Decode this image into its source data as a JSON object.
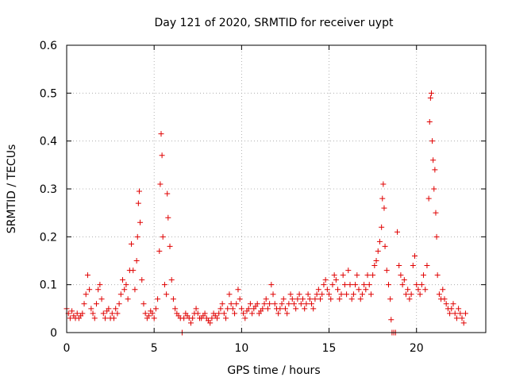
{
  "chart_data": {
    "type": "scatter",
    "title": "Day 121 of 2020, SRMTID for receiver uypt",
    "xlabel": "GPS time / hours",
    "ylabel": "SRMTID / TECUs",
    "xlim": [
      0,
      23.96
    ],
    "ylim": [
      0,
      0.6
    ],
    "xticks": [
      0,
      5,
      10,
      15,
      20
    ],
    "xtick_labels": [
      "0",
      "5",
      "10",
      "15",
      "20"
    ],
    "yticks": [
      0,
      0.1,
      0.2,
      0.3,
      0.4,
      0.5,
      0.6
    ],
    "ytick_labels": [
      "0",
      "0.1",
      "0.2",
      "0.3",
      "0.4",
      "0.5",
      "0.6"
    ],
    "grid": true,
    "marker": "plus",
    "marker_color": "#e00000",
    "series": [
      {
        "name": "SRMTID",
        "points": [
          [
            0.0,
            0.05
          ],
          [
            0.1,
            0.04
          ],
          [
            0.2,
            0.03
          ],
          [
            0.3,
            0.045
          ],
          [
            0.4,
            0.035
          ],
          [
            0.5,
            0.03
          ],
          [
            0.6,
            0.04
          ],
          [
            0.7,
            0.03
          ],
          [
            0.8,
            0.035
          ],
          [
            0.9,
            0.04
          ],
          [
            1.0,
            0.06
          ],
          [
            1.1,
            0.08
          ],
          [
            1.2,
            0.12
          ],
          [
            1.3,
            0.09
          ],
          [
            1.4,
            0.05
          ],
          [
            1.5,
            0.04
          ],
          [
            1.6,
            0.03
          ],
          [
            1.7,
            0.06
          ],
          [
            1.8,
            0.09
          ],
          [
            1.9,
            0.1
          ],
          [
            2.0,
            0.07
          ],
          [
            2.1,
            0.04
          ],
          [
            2.2,
            0.03
          ],
          [
            2.3,
            0.045
          ],
          [
            2.4,
            0.05
          ],
          [
            2.5,
            0.03
          ],
          [
            2.6,
            0.04
          ],
          [
            2.7,
            0.03
          ],
          [
            2.8,
            0.05
          ],
          [
            2.9,
            0.04
          ],
          [
            3.0,
            0.06
          ],
          [
            3.1,
            0.08
          ],
          [
            3.2,
            0.11
          ],
          [
            3.3,
            0.09
          ],
          [
            3.4,
            0.1
          ],
          [
            3.5,
            0.07
          ],
          [
            3.6,
            0.13
          ],
          [
            3.7,
            0.185
          ],
          [
            3.8,
            0.13
          ],
          [
            3.9,
            0.09
          ],
          [
            4.0,
            0.15
          ],
          [
            4.05,
            0.2
          ],
          [
            4.1,
            0.27
          ],
          [
            4.15,
            0.295
          ],
          [
            4.2,
            0.23
          ],
          [
            4.3,
            0.11
          ],
          [
            4.4,
            0.06
          ],
          [
            4.5,
            0.04
          ],
          [
            4.6,
            0.03
          ],
          [
            4.7,
            0.035
          ],
          [
            4.8,
            0.045
          ],
          [
            4.9,
            0.04
          ],
          [
            5.0,
            0.03
          ],
          [
            5.1,
            0.05
          ],
          [
            5.2,
            0.07
          ],
          [
            5.3,
            0.17
          ],
          [
            5.35,
            0.31
          ],
          [
            5.4,
            0.415
          ],
          [
            5.45,
            0.37
          ],
          [
            5.5,
            0.2
          ],
          [
            5.6,
            0.1
          ],
          [
            5.7,
            0.08
          ],
          [
            5.75,
            0.29
          ],
          [
            5.8,
            0.24
          ],
          [
            5.9,
            0.18
          ],
          [
            6.0,
            0.11
          ],
          [
            6.1,
            0.07
          ],
          [
            6.2,
            0.05
          ],
          [
            6.3,
            0.04
          ],
          [
            6.4,
            0.035
          ],
          [
            6.5,
            0.03
          ],
          [
            6.6,
            0.0
          ],
          [
            6.7,
            0.03
          ],
          [
            6.8,
            0.04
          ],
          [
            6.9,
            0.035
          ],
          [
            7.0,
            0.03
          ],
          [
            7.1,
            0.02
          ],
          [
            7.2,
            0.03
          ],
          [
            7.3,
            0.04
          ],
          [
            7.4,
            0.05
          ],
          [
            7.5,
            0.04
          ],
          [
            7.6,
            0.03
          ],
          [
            7.7,
            0.03
          ],
          [
            7.8,
            0.035
          ],
          [
            7.9,
            0.04
          ],
          [
            8.0,
            0.03
          ],
          [
            8.1,
            0.025
          ],
          [
            8.2,
            0.02
          ],
          [
            8.3,
            0.03
          ],
          [
            8.4,
            0.04
          ],
          [
            8.5,
            0.035
          ],
          [
            8.6,
            0.03
          ],
          [
            8.7,
            0.04
          ],
          [
            8.8,
            0.05
          ],
          [
            8.9,
            0.06
          ],
          [
            9.0,
            0.04
          ],
          [
            9.1,
            0.03
          ],
          [
            9.2,
            0.05
          ],
          [
            9.3,
            0.08
          ],
          [
            9.4,
            0.06
          ],
          [
            9.5,
            0.05
          ],
          [
            9.6,
            0.04
          ],
          [
            9.7,
            0.06
          ],
          [
            9.8,
            0.09
          ],
          [
            9.9,
            0.07
          ],
          [
            10.0,
            0.05
          ],
          [
            10.1,
            0.04
          ],
          [
            10.2,
            0.03
          ],
          [
            10.3,
            0.045
          ],
          [
            10.4,
            0.05
          ],
          [
            10.5,
            0.06
          ],
          [
            10.6,
            0.04
          ],
          [
            10.7,
            0.05
          ],
          [
            10.8,
            0.055
          ],
          [
            10.9,
            0.06
          ],
          [
            11.0,
            0.04
          ],
          [
            11.1,
            0.045
          ],
          [
            11.2,
            0.05
          ],
          [
            11.3,
            0.06
          ],
          [
            11.4,
            0.07
          ],
          [
            11.5,
            0.05
          ],
          [
            11.6,
            0.06
          ],
          [
            11.7,
            0.1
          ],
          [
            11.8,
            0.08
          ],
          [
            11.9,
            0.06
          ],
          [
            12.0,
            0.05
          ],
          [
            12.1,
            0.04
          ],
          [
            12.2,
            0.05
          ],
          [
            12.3,
            0.06
          ],
          [
            12.4,
            0.07
          ],
          [
            12.5,
            0.05
          ],
          [
            12.6,
            0.04
          ],
          [
            12.7,
            0.06
          ],
          [
            12.8,
            0.08
          ],
          [
            12.9,
            0.07
          ],
          [
            13.0,
            0.06
          ],
          [
            13.1,
            0.05
          ],
          [
            13.2,
            0.07
          ],
          [
            13.3,
            0.08
          ],
          [
            13.4,
            0.06
          ],
          [
            13.5,
            0.07
          ],
          [
            13.6,
            0.05
          ],
          [
            13.7,
            0.06
          ],
          [
            13.8,
            0.08
          ],
          [
            13.9,
            0.07
          ],
          [
            14.0,
            0.06
          ],
          [
            14.1,
            0.05
          ],
          [
            14.2,
            0.07
          ],
          [
            14.3,
            0.08
          ],
          [
            14.4,
            0.09
          ],
          [
            14.5,
            0.07
          ],
          [
            14.6,
            0.08
          ],
          [
            14.7,
            0.1
          ],
          [
            14.8,
            0.11
          ],
          [
            14.9,
            0.09
          ],
          [
            15.0,
            0.08
          ],
          [
            15.1,
            0.07
          ],
          [
            15.2,
            0.1
          ],
          [
            15.3,
            0.12
          ],
          [
            15.4,
            0.11
          ],
          [
            15.5,
            0.09
          ],
          [
            15.6,
            0.07
          ],
          [
            15.7,
            0.08
          ],
          [
            15.8,
            0.12
          ],
          [
            15.9,
            0.1
          ],
          [
            16.0,
            0.08
          ],
          [
            16.1,
            0.13
          ],
          [
            16.2,
            0.1
          ],
          [
            16.3,
            0.07
          ],
          [
            16.4,
            0.08
          ],
          [
            16.5,
            0.1
          ],
          [
            16.6,
            0.12
          ],
          [
            16.7,
            0.09
          ],
          [
            16.8,
            0.07
          ],
          [
            16.9,
            0.08
          ],
          [
            17.0,
            0.1
          ],
          [
            17.1,
            0.09
          ],
          [
            17.2,
            0.12
          ],
          [
            17.3,
            0.1
          ],
          [
            17.4,
            0.08
          ],
          [
            17.5,
            0.12
          ],
          [
            17.6,
            0.14
          ],
          [
            17.7,
            0.15
          ],
          [
            17.8,
            0.17
          ],
          [
            17.9,
            0.19
          ],
          [
            18.0,
            0.22
          ],
          [
            18.05,
            0.28
          ],
          [
            18.1,
            0.31
          ],
          [
            18.15,
            0.26
          ],
          [
            18.2,
            0.18
          ],
          [
            18.3,
            0.13
          ],
          [
            18.4,
            0.1
          ],
          [
            18.5,
            0.07
          ],
          [
            18.55,
            0.027
          ],
          [
            18.6,
            0.0
          ],
          [
            18.7,
            0.0
          ],
          [
            18.8,
            0.0
          ],
          [
            18.9,
            0.21
          ],
          [
            19.0,
            0.14
          ],
          [
            19.1,
            0.12
          ],
          [
            19.2,
            0.1
          ],
          [
            19.3,
            0.11
          ],
          [
            19.4,
            0.08
          ],
          [
            19.5,
            0.09
          ],
          [
            19.6,
            0.07
          ],
          [
            19.7,
            0.08
          ],
          [
            19.8,
            0.14
          ],
          [
            19.9,
            0.16
          ],
          [
            20.0,
            0.1
          ],
          [
            20.1,
            0.09
          ],
          [
            20.2,
            0.08
          ],
          [
            20.3,
            0.1
          ],
          [
            20.4,
            0.12
          ],
          [
            20.5,
            0.09
          ],
          [
            20.6,
            0.14
          ],
          [
            20.7,
            0.28
          ],
          [
            20.75,
            0.44
          ],
          [
            20.8,
            0.49
          ],
          [
            20.85,
            0.5
          ],
          [
            20.9,
            0.4
          ],
          [
            20.95,
            0.36
          ],
          [
            21.0,
            0.3
          ],
          [
            21.05,
            0.34
          ],
          [
            21.1,
            0.25
          ],
          [
            21.15,
            0.2
          ],
          [
            21.2,
            0.12
          ],
          [
            21.3,
            0.08
          ],
          [
            21.4,
            0.07
          ],
          [
            21.5,
            0.09
          ],
          [
            21.6,
            0.07
          ],
          [
            21.7,
            0.06
          ],
          [
            21.8,
            0.05
          ],
          [
            21.9,
            0.04
          ],
          [
            22.0,
            0.05
          ],
          [
            22.1,
            0.06
          ],
          [
            22.2,
            0.04
          ],
          [
            22.3,
            0.03
          ],
          [
            22.4,
            0.05
          ],
          [
            22.5,
            0.04
          ],
          [
            22.6,
            0.03
          ],
          [
            22.7,
            0.02
          ],
          [
            22.8,
            0.04
          ]
        ]
      }
    ]
  }
}
